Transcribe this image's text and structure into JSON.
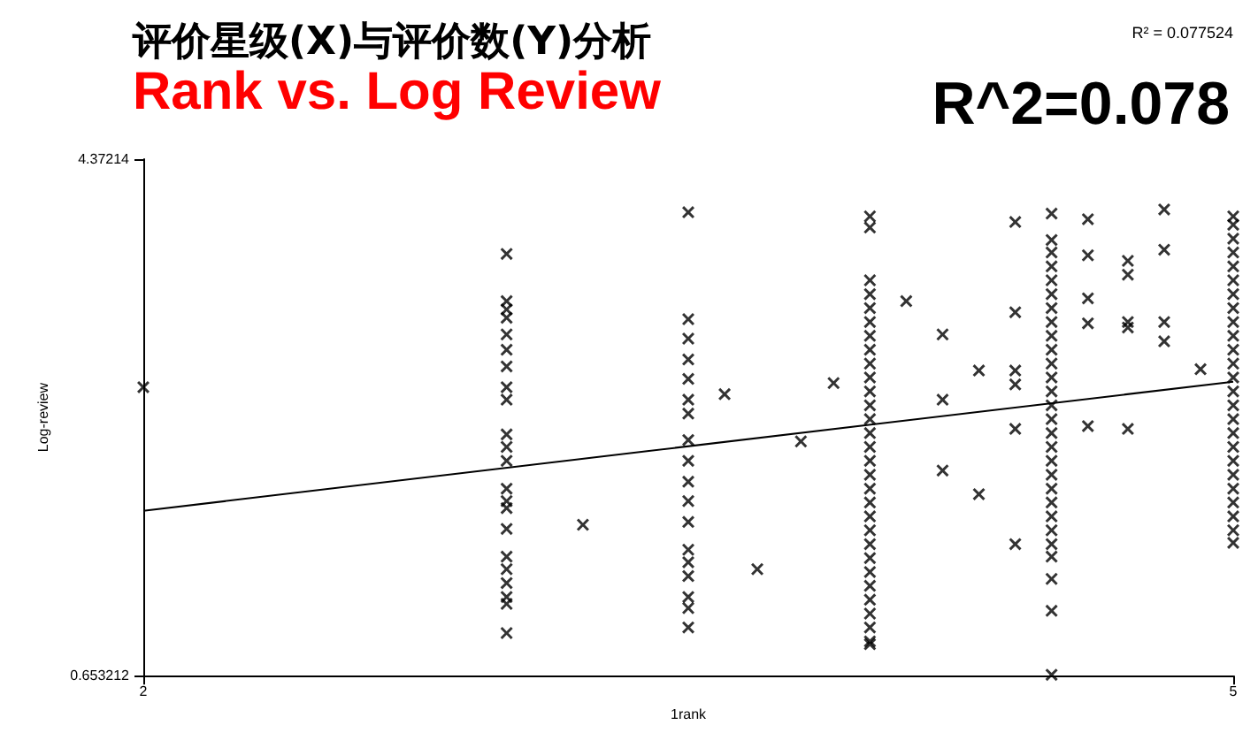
{
  "chart_data": {
    "type": "scatter",
    "title": "评价星级(X)与评价数(Y)分析",
    "subtitle": "Rank vs. Log Review",
    "xlabel": "1rank",
    "ylabel": "Log-review",
    "annotations": [
      "R^2=0.078",
      "R² = 0.077524"
    ],
    "xlim": [
      2,
      5
    ],
    "xticks": [
      2,
      5
    ],
    "ylim": [
      0.653212,
      4.37214
    ],
    "yticks": [
      0.653212,
      4.37214
    ],
    "grid": false,
    "marker": "cross",
    "series": [
      {
        "color": "#000000",
        "x": [
          2,
          3.21,
          3.6,
          3.69,
          3.81,
          3.9,
          4.1,
          4.2,
          4.2,
          4.2,
          4.3,
          4.3,
          4.4,
          4.4,
          4.4,
          4.4,
          4.4,
          4.4,
          4.6,
          4.6,
          4.6,
          4.6,
          4.6,
          4.71,
          4.71,
          4.71,
          4.71,
          4.71,
          4.81,
          4.81,
          4.81,
          4.81,
          4.91,
          3,
          3,
          3,
          3,
          3,
          3,
          3,
          3,
          3,
          3,
          3,
          3,
          3,
          3,
          3,
          3,
          3,
          3,
          3,
          3,
          3,
          3,
          3.5,
          3.5,
          3.5,
          3.5,
          3.5,
          3.5,
          3.5,
          3.5,
          3.5,
          3.5,
          3.5,
          3.5,
          3.5,
          3.5,
          3.5,
          3.5,
          3.5,
          3.5,
          4,
          4,
          4,
          4,
          4,
          4,
          4,
          4,
          4,
          4,
          4,
          4,
          4,
          4,
          4,
          4,
          4,
          4,
          4,
          4,
          4,
          4,
          4,
          4,
          4,
          4,
          4,
          4,
          4,
          4,
          4.5,
          4.5,
          4.5,
          4.5,
          4.5,
          4.5,
          4.5,
          4.5,
          4.5,
          4.5,
          4.5,
          4.5,
          4.5,
          4.5,
          4.5,
          4.5,
          4.5,
          4.5,
          4.5,
          4.5,
          4.5,
          4.5,
          4.5,
          4.5,
          4.5,
          4.5,
          4.5,
          4.5,
          5,
          5,
          5,
          5,
          5,
          5,
          5,
          5,
          5,
          5,
          5,
          5,
          5,
          5,
          5,
          5,
          5,
          5,
          5,
          5,
          5,
          5,
          5,
          5,
          5
        ],
        "values": [
          2.73,
          1.74,
          2.68,
          1.42,
          2.34,
          2.76,
          3.35,
          3.11,
          2.64,
          2.13,
          2.85,
          1.96,
          3.92,
          3.27,
          2.85,
          2.75,
          2.43,
          1.6,
          3.94,
          3.68,
          3.37,
          3.19,
          2.45,
          3.64,
          3.54,
          3.2,
          3.16,
          2.43,
          4.01,
          3.72,
          3.2,
          3.06,
          2.86,
          3.69,
          3.35,
          3.29,
          3.23,
          3.11,
          3.0,
          2.88,
          2.73,
          2.64,
          2.39,
          2.3,
          2.2,
          2.0,
          1.91,
          1.86,
          1.71,
          1.51,
          1.42,
          1.32,
          1.22,
          1.17,
          0.96,
          3.99,
          3.22,
          3.08,
          2.93,
          2.79,
          2.64,
          2.54,
          2.35,
          2.2,
          2.05,
          1.91,
          1.76,
          1.56,
          1.47,
          1.37,
          1.22,
          1.14,
          1.0,
          3.96,
          3.88,
          3.5,
          3.4,
          3.3,
          3.2,
          3.1,
          3.0,
          2.9,
          2.8,
          2.7,
          2.6,
          2.5,
          2.4,
          2.3,
          2.2,
          2.1,
          2.0,
          1.9,
          1.8,
          1.7,
          1.6,
          1.5,
          1.4,
          1.3,
          1.2,
          1.1,
          1.0,
          0.9,
          0.88,
          3.98,
          3.79,
          3.7,
          3.6,
          3.5,
          3.4,
          3.3,
          3.2,
          3.1,
          3.0,
          2.9,
          2.8,
          2.7,
          2.6,
          2.5,
          2.4,
          2.3,
          2.2,
          2.1,
          2.0,
          1.9,
          1.8,
          1.7,
          1.6,
          1.51,
          1.35,
          1.12,
          0.66,
          3.96,
          3.9,
          3.8,
          3.7,
          3.6,
          3.5,
          3.4,
          3.3,
          3.2,
          3.1,
          3.0,
          2.9,
          2.8,
          2.7,
          2.6,
          2.5,
          2.4,
          2.3,
          2.2,
          2.1,
          2.0,
          1.9,
          1.8,
          1.7,
          1.61
        ]
      },
      {
        "type": "line",
        "color": "#000000",
        "marker": "none",
        "line_style": "solid",
        "x": [
          2,
          5
        ],
        "values": [
          1.84,
          2.77
        ]
      }
    ]
  }
}
